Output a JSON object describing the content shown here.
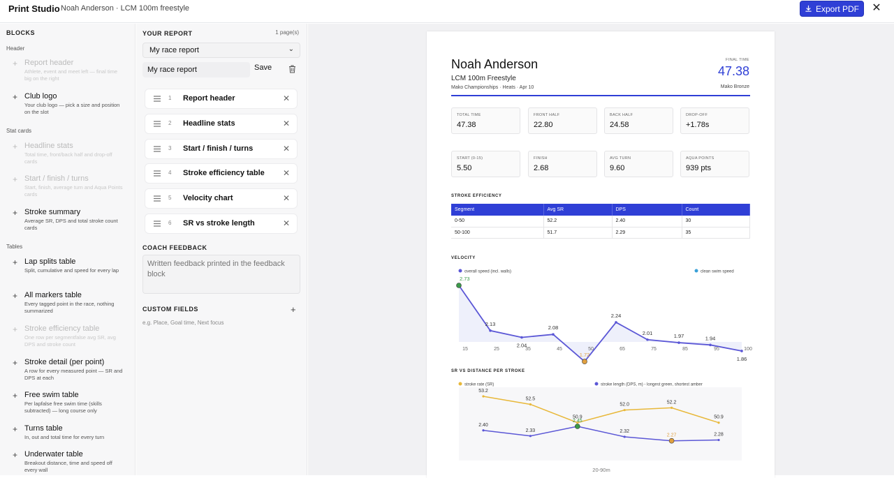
{
  "app": {
    "title": "Print Studio",
    "subtitle": "Noah Anderson · LCM 100m freestyle",
    "export_label": "Export PDF"
  },
  "blocks": {
    "heading": "BLOCKS",
    "categories": [
      "Header",
      "Stat cards",
      "Tables"
    ],
    "items": [
      {
        "title": "Report header",
        "desc": "Athlete, event and meet left — final time big on the right",
        "disabled": true
      },
      {
        "title": "Club logo",
        "desc": "Your club logo — pick a size and position on the slot",
        "disabled": false
      },
      {
        "title": "Headline stats",
        "desc": "Total time, front/back half and drop-off cards",
        "disabled": true
      },
      {
        "title": "Start / finish / turns",
        "desc": "Start, finish, average turn and Aqua Points cards",
        "disabled": true
      },
      {
        "title": "Stroke summary",
        "desc": "Average SR, DPS and total stroke count cards",
        "disabled": false
      },
      {
        "title": "Lap splits table",
        "desc": "Split, cumulative and speed for every lap",
        "disabled": false
      },
      {
        "title": "All markers table",
        "desc": "Every tagged point in the race, nothing summarized",
        "disabled": false
      },
      {
        "title": "Stroke efficiency table",
        "desc": "One row per segmentfalse avg SR, avg DPS and stroke count",
        "disabled": true
      },
      {
        "title": "Stroke detail (per point)",
        "desc": "A row for every measured point — SR and DPS at each",
        "disabled": false
      },
      {
        "title": "Free swim table",
        "desc": "Per lapfalse free swim time (skills subtracted) — long course only",
        "disabled": false
      },
      {
        "title": "Turns table",
        "desc": "In, out and total time for every turn",
        "disabled": false
      },
      {
        "title": "Underwater table",
        "desc": "Breakout distance, time and speed off every wall",
        "disabled": false
      }
    ]
  },
  "report": {
    "heading": "YOUR REPORT",
    "pages": "1 page(s)",
    "selected": "My race report",
    "name_value": "My race report",
    "save_label": "Save",
    "rows": [
      {
        "num": "1",
        "label": "Report header"
      },
      {
        "num": "2",
        "label": "Headline stats"
      },
      {
        "num": "3",
        "label": "Start / finish / turns"
      },
      {
        "num": "4",
        "label": "Stroke efficiency table"
      },
      {
        "num": "5",
        "label": "Velocity chart"
      },
      {
        "num": "6",
        "label": "SR vs stroke length"
      }
    ],
    "feedback_heading": "COACH FEEDBACK",
    "feedback_placeholder": "Written feedback printed in the feedback block",
    "custom_heading": "CUSTOM FIELDS",
    "custom_hint": "e.g. Place, Goal time, Next focus"
  },
  "paper": {
    "name": "Noah Anderson",
    "event": "LCM 100m Freestyle",
    "meet": "Mako Championships · Heats · Apr 10",
    "final_label": "FINAL TIME",
    "final_time": "47.38",
    "medal": "Mako Bronze",
    "stats_row1": [
      {
        "label": "TOTAL TIME",
        "value": "47.38"
      },
      {
        "label": "FRONT HALF",
        "value": "22.80"
      },
      {
        "label": "BACK HALF",
        "value": "24.58"
      },
      {
        "label": "DROP-OFF",
        "value": "+1.78s"
      }
    ],
    "stats_row2": [
      {
        "label": "START (0-15)",
        "value": "5.50"
      },
      {
        "label": "FINISH",
        "value": "2.68"
      },
      {
        "label": "AVG TURN",
        "value": "9.60"
      },
      {
        "label": "AQUA POINTS",
        "value": "939 pts"
      }
    ],
    "se_heading": "STROKE EFFICIENCY",
    "se_columns": [
      "Segment",
      "Avg SR",
      "DPS",
      "Count"
    ],
    "se_rows": [
      [
        "0-50",
        "52.2",
        "2.40",
        "30"
      ],
      [
        "50-100",
        "51.7",
        "2.29",
        "35"
      ]
    ],
    "velocity_heading": "VELOCITY",
    "sr_heading": "SR VS DISTANCE PER STROKE"
  },
  "colors": {
    "accent": "#2f3fd6",
    "velocity": "#5b57d6",
    "sr": "#e8b83a",
    "best": "#3c9a4a",
    "worst": "#e0a040"
  },
  "chart_data": [
    {
      "type": "line",
      "series": [
        {
          "name": "overall speed (incl. walls)",
          "x": [
            15,
            25,
            35,
            45,
            50,
            65,
            75,
            85,
            95,
            100
          ],
          "values": [
            2.73,
            2.13,
            2.04,
            2.08,
            1.72,
            2.24,
            2.01,
            1.97,
            1.94,
            1.86
          ]
        }
      ],
      "legend_right": "clean swim speed",
      "x_ticks": [
        "15",
        "25",
        "35",
        "45",
        "50",
        "65",
        "75",
        "85",
        "95",
        "100"
      ]
    },
    {
      "type": "line",
      "series": [
        {
          "name": "stroke rate (SR)",
          "values": [
            53.2,
            52.5,
            50.9,
            52.0,
            52.2,
            50.9
          ]
        },
        {
          "name": "stroke length (DPS, m) - longest green, shortest amber",
          "values": [
            2.4,
            2.33,
            2.45,
            2.32,
            2.27,
            2.28
          ]
        }
      ],
      "x_label": "20-90m"
    }
  ]
}
